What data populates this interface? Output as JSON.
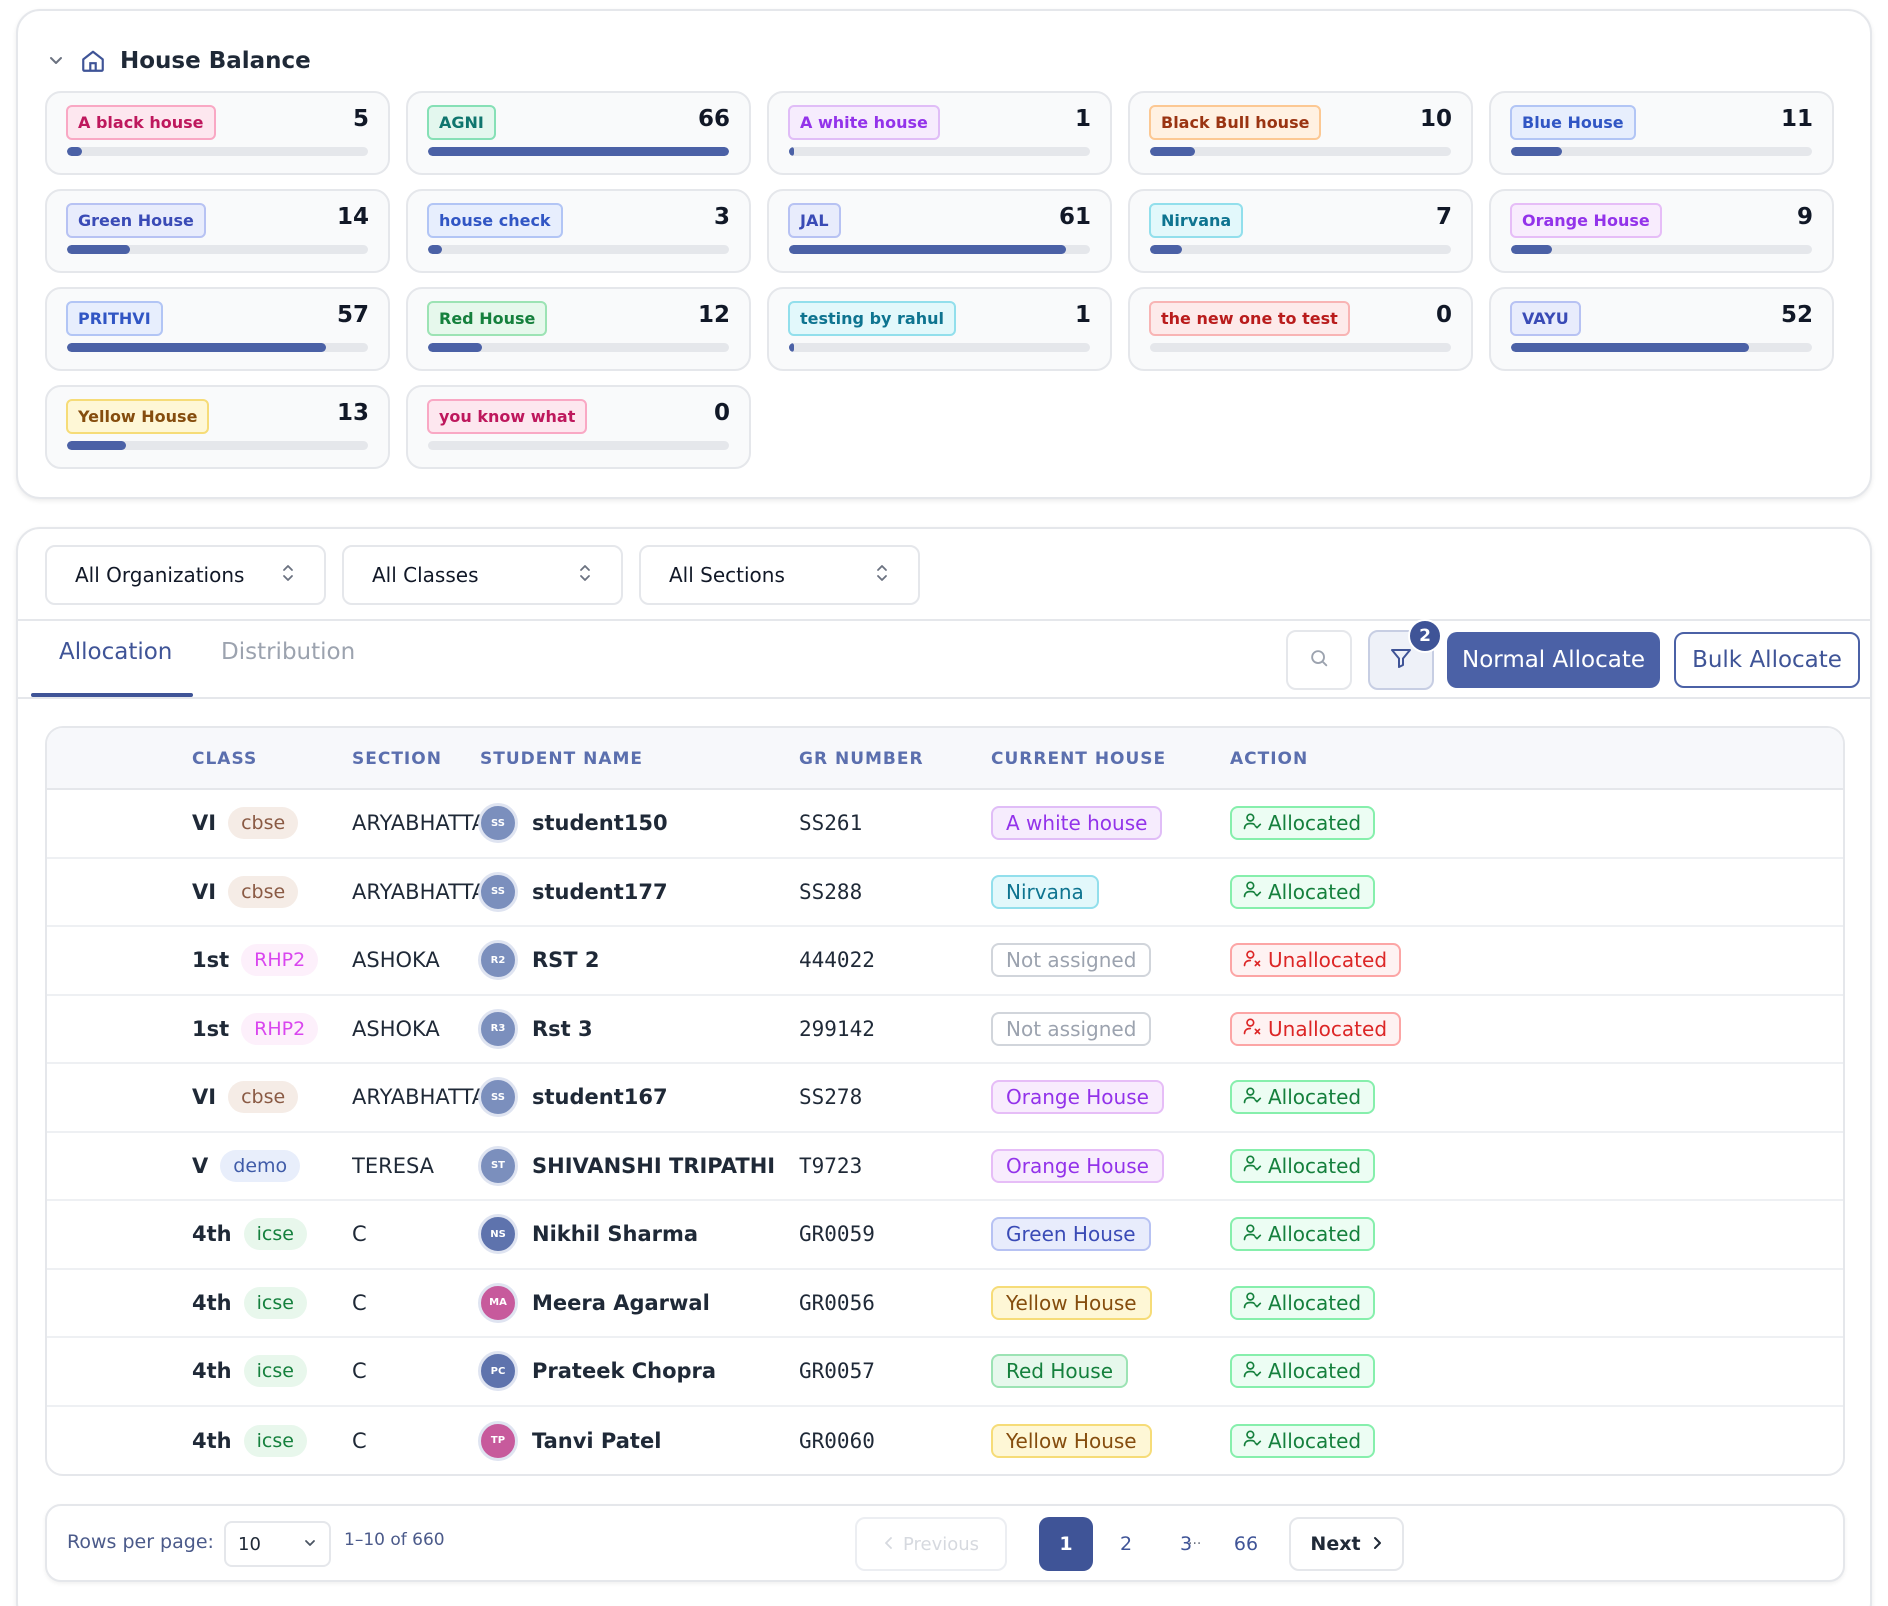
{
  "house_balance": {
    "title": "House Balance",
    "houses": [
      {
        "name": "A black house",
        "count": 5,
        "level": 5,
        "bg": "#fde7ef",
        "border": "#f9a8c4",
        "color": "#be185d"
      },
      {
        "name": "AGNI",
        "count": 66,
        "level": 100,
        "bg": "#e3f7ee",
        "border": "#86e0b6",
        "color": "#0f766e"
      },
      {
        "name": "A white house",
        "count": 1,
        "level": 1.5,
        "bg": "#f6ecfd",
        "border": "#e0bdf7",
        "color": "#9333ea"
      },
      {
        "name": "Black Bull house",
        "count": 10,
        "level": 15,
        "bg": "#fff1e2",
        "border": "#fcc893",
        "color": "#9a3412"
      },
      {
        "name": "Blue House",
        "count": 11,
        "level": 17,
        "bg": "#e7eefd",
        "border": "#b2c5f5",
        "color": "#3156c4"
      },
      {
        "name": "Green House",
        "count": 14,
        "level": 21,
        "bg": "#e8ecfc",
        "border": "#b7c2f3",
        "color": "#3a4bb6"
      },
      {
        "name": "house check",
        "count": 3,
        "level": 4.5,
        "bg": "#e7eefd",
        "border": "#b2c5f5",
        "color": "#3156c4"
      },
      {
        "name": "JAL",
        "count": 61,
        "level": 92,
        "bg": "#e8ecfc",
        "border": "#b7c2f3",
        "color": "#3a4bb6"
      },
      {
        "name": "Nirvana",
        "count": 7,
        "level": 10.6,
        "bg": "#e2f8fb",
        "border": "#92dfec",
        "color": "#0e7490"
      },
      {
        "name": "Orange House",
        "count": 9,
        "level": 13.6,
        "bg": "#f8ecfd",
        "border": "#e6bdf7",
        "color": "#9333ea"
      },
      {
        "name": "PRITHVI",
        "count": 57,
        "level": 86,
        "bg": "#e7eefd",
        "border": "#b2c5f5",
        "color": "#3156c4"
      },
      {
        "name": "Red House",
        "count": 12,
        "level": 18,
        "bg": "#e6f8ec",
        "border": "#9ce3b4",
        "color": "#15803d"
      },
      {
        "name": "testing by rahul",
        "count": 1,
        "level": 1.5,
        "bg": "#e2f8fb",
        "border": "#92dfec",
        "color": "#0e7490"
      },
      {
        "name": "the new one to test",
        "count": 0,
        "level": 0,
        "bg": "#fdeaea",
        "border": "#f8b4b4",
        "color": "#b91c1c"
      },
      {
        "name": "VAYU",
        "count": 52,
        "level": 79,
        "bg": "#e8ecfc",
        "border": "#b7c2f3",
        "color": "#3a4bb6"
      },
      {
        "name": "Yellow House",
        "count": 13,
        "level": 19.7,
        "bg": "#fef7d6",
        "border": "#f6dc78",
        "color": "#854d0e"
      },
      {
        "name": "you know what",
        "count": 0,
        "level": 0,
        "bg": "#fde7ef",
        "border": "#f9a8c4",
        "color": "#be185d"
      }
    ]
  },
  "filters": {
    "organization": "All Organizations",
    "class": "All Classes",
    "section": "All Sections"
  },
  "tabs": {
    "allocation": "Allocation",
    "distribution": "Distribution"
  },
  "toolbar": {
    "filter_count": "2",
    "normal_allocate": "Normal Allocate",
    "bulk_allocate": "Bulk Allocate"
  },
  "table": {
    "headers": {
      "class": "CLASS",
      "section": "SECTION",
      "student_name": "STUDENT NAME",
      "gr_number": "GR NUMBER",
      "current_house": "CURRENT HOUSE",
      "action": "ACTION"
    },
    "rows": [
      {
        "class": "VI",
        "board": "cbse",
        "section": "ARYABHATTA",
        "initials": "SS",
        "avatar_color": "#7b8fbd",
        "name": "student150",
        "gr": "SS261",
        "house": "A white house",
        "action": "Allocated"
      },
      {
        "class": "VI",
        "board": "cbse",
        "section": "ARYABHATTA",
        "initials": "SS",
        "avatar_color": "#7b8fbd",
        "name": "student177",
        "gr": "SS288",
        "house": "Nirvana",
        "action": "Allocated"
      },
      {
        "class": "1st",
        "board": "RHP2",
        "section": "ASHOKA",
        "initials": "R2",
        "avatar_color": "#7b8fbd",
        "name": "RST 2",
        "gr": "444022",
        "house": "Not assigned",
        "action": "Unallocated"
      },
      {
        "class": "1st",
        "board": "RHP2",
        "section": "ASHOKA",
        "initials": "R3",
        "avatar_color": "#7b8fbd",
        "name": "Rst 3",
        "gr": "299142",
        "house": "Not assigned",
        "action": "Unallocated"
      },
      {
        "class": "VI",
        "board": "cbse",
        "section": "ARYABHATTA",
        "initials": "SS",
        "avatar_color": "#7b8fbd",
        "name": "student167",
        "gr": "SS278",
        "house": "Orange House",
        "action": "Allocated"
      },
      {
        "class": "V",
        "board": "demo",
        "section": "TERESA",
        "initials": "ST",
        "avatar_color": "#7b8fbd",
        "name": "SHIVANSHI TRIPATHI",
        "gr": "T9723",
        "house": "Orange House",
        "action": "Allocated"
      },
      {
        "class": "4th",
        "board": "icse",
        "section": "C",
        "initials": "NS",
        "avatar_color": "#5e73ad",
        "name": "Nikhil Sharma",
        "gr": "GR0059",
        "house": "Green House",
        "action": "Allocated"
      },
      {
        "class": "4th",
        "board": "icse",
        "section": "C",
        "initials": "MA",
        "avatar_color": "#c75a9c",
        "name": "Meera Agarwal",
        "gr": "GR0056",
        "house": "Yellow House",
        "action": "Allocated"
      },
      {
        "class": "4th",
        "board": "icse",
        "section": "C",
        "initials": "PC",
        "avatar_color": "#5e73ad",
        "name": "Prateek Chopra",
        "gr": "GR0057",
        "house": "Red House",
        "action": "Allocated"
      },
      {
        "class": "4th",
        "board": "icse",
        "section": "C",
        "initials": "TP",
        "avatar_color": "#c75a9c",
        "name": "Tanvi Patel",
        "gr": "GR0060",
        "house": "Yellow House",
        "action": "Allocated"
      }
    ]
  },
  "pagination": {
    "rows_per_page_label": "Rows per page:",
    "rows_per_page": "10",
    "range": "1–10 of 660",
    "previous": "Previous",
    "next": "Next",
    "pages": [
      "1",
      "2",
      "3",
      "66"
    ],
    "ellipsis": "...",
    "current_page": "1"
  },
  "colors": {
    "accent": "#3f5497",
    "allocated": "#15803d",
    "unallocated": "#dc2626"
  }
}
